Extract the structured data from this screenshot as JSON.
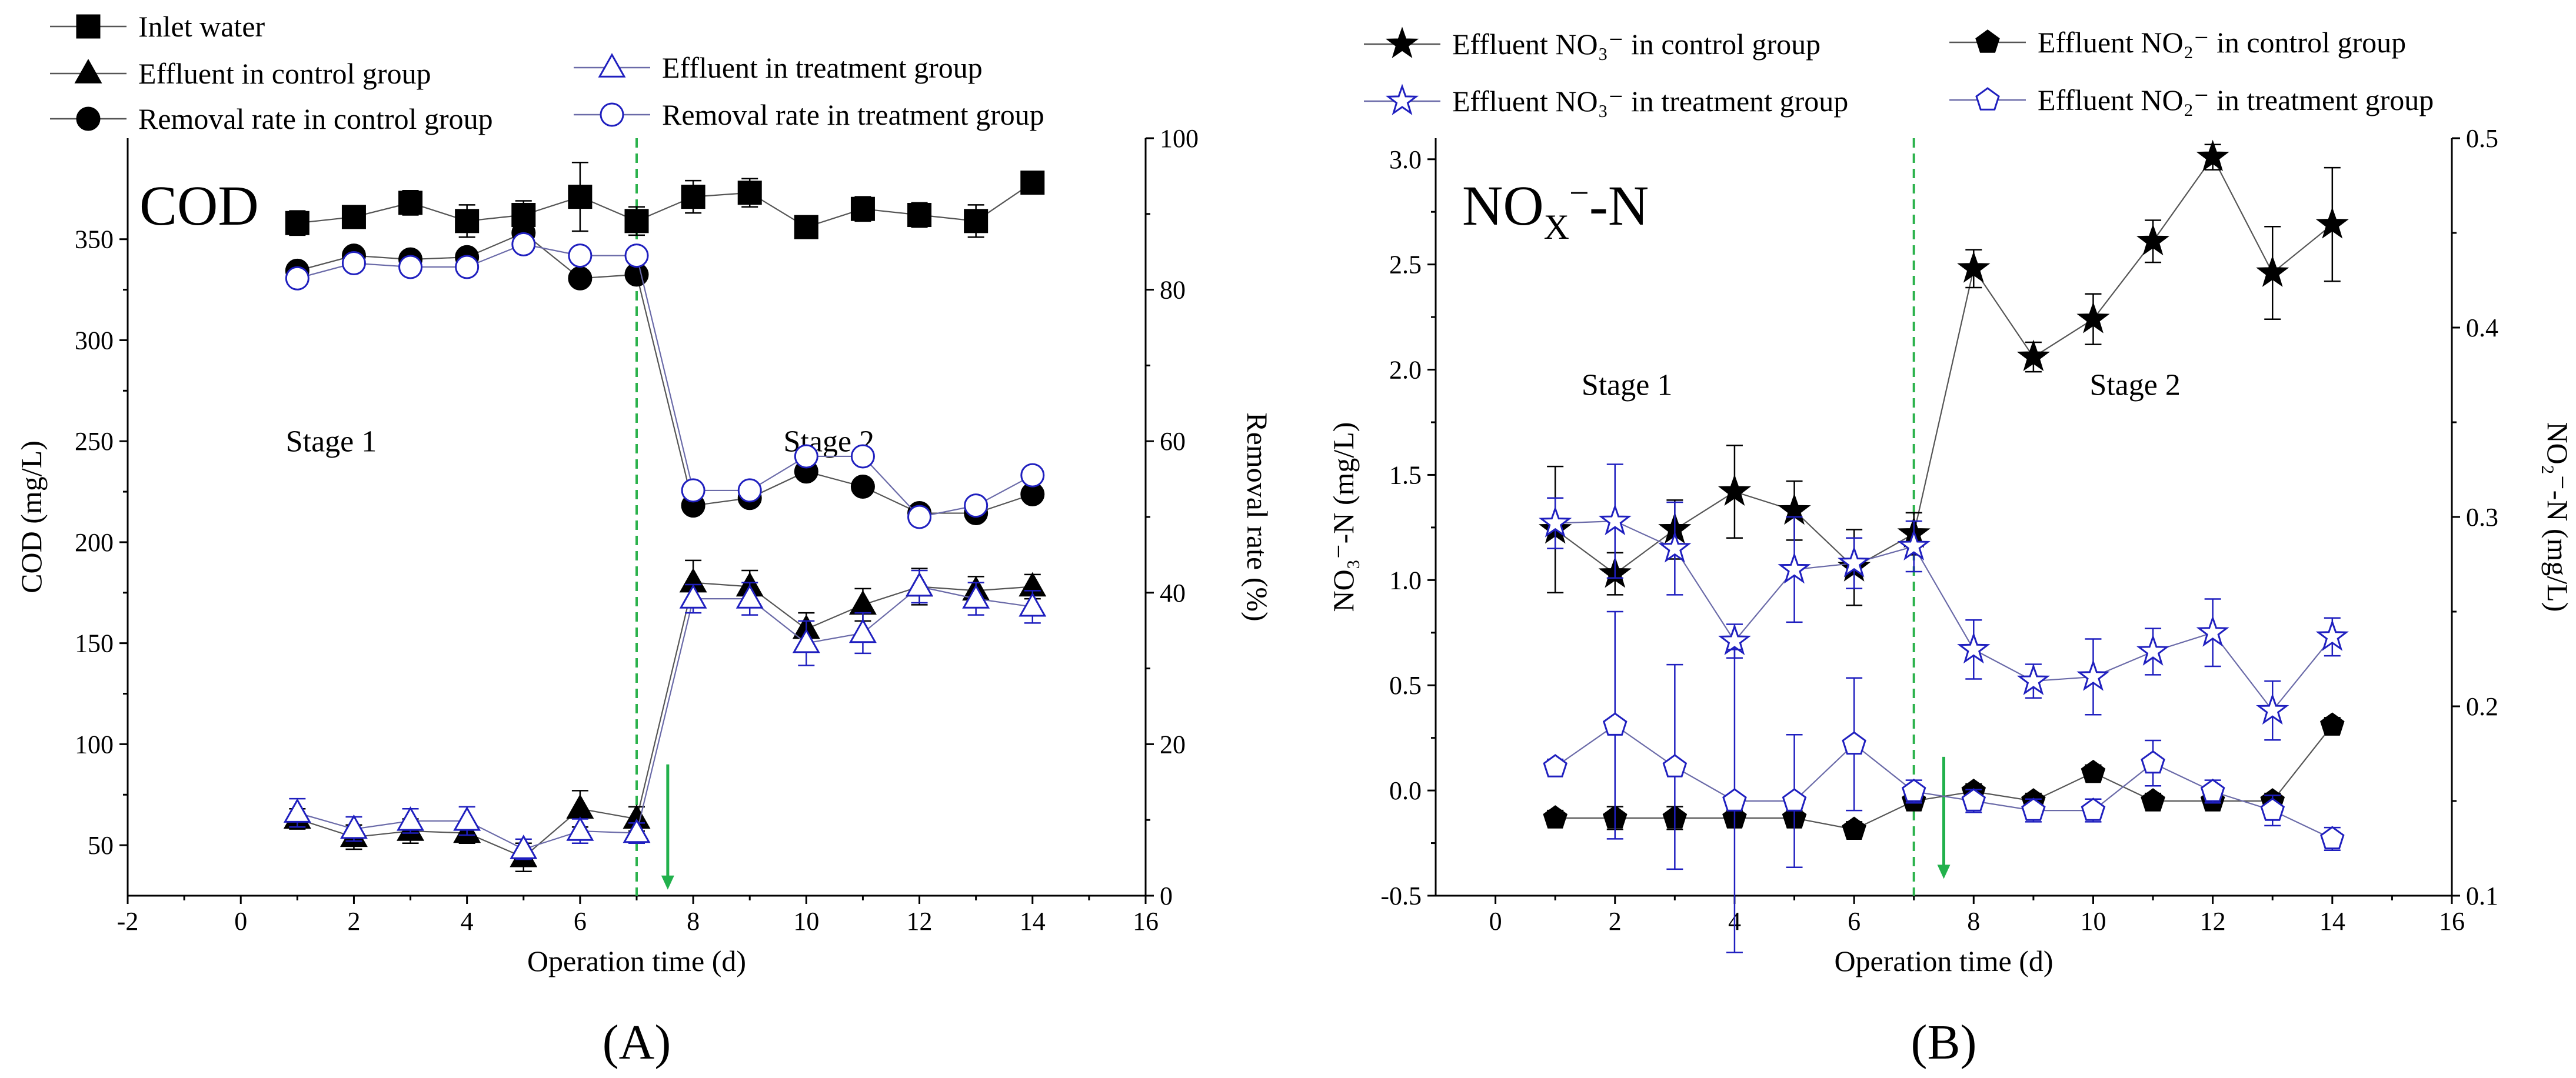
{
  "figure": {
    "panel_labels": [
      "(A)",
      "(B)"
    ]
  },
  "chart_data": [
    {
      "type": "line",
      "panel": "(A)",
      "title": "COD",
      "xlabel": "Operation time (d)",
      "ylabel": "COD (mg/L)",
      "y2label": "Removal rate (%)",
      "xlim": [
        -2,
        16
      ],
      "ylim": [
        25,
        400
      ],
      "y2lim": [
        0,
        100
      ],
      "xticks": [
        -2,
        0,
        2,
        4,
        6,
        8,
        10,
        12,
        14,
        16
      ],
      "yticks": [
        50,
        100,
        150,
        200,
        250,
        300,
        350
      ],
      "y2ticks": [
        0,
        20,
        40,
        60,
        80,
        100
      ],
      "stage_divider_x": 7,
      "stage_labels": [
        {
          "text": "Stage 1",
          "x": 1.6,
          "y": 245
        },
        {
          "text": "Stage 2",
          "x": 10.4,
          "y": 245
        }
      ],
      "arrow": {
        "x": 7.55,
        "y_from": 90,
        "y_to": 28
      },
      "x": [
        1,
        2,
        3,
        4,
        5,
        6,
        7,
        8,
        9,
        10,
        11,
        12,
        13,
        14
      ],
      "series": [
        {
          "name": "Inlet water",
          "axis": "left",
          "marker": "square",
          "filled": true,
          "color": "#000000",
          "values": [
            358,
            361,
            368,
            359,
            362,
            371,
            359,
            371,
            373,
            356,
            365,
            362,
            359,
            378
          ],
          "errors": [
            6,
            5,
            6,
            8,
            7,
            17,
            7,
            8,
            7,
            5,
            6,
            6,
            8,
            4
          ]
        },
        {
          "name": "Effluent in control group",
          "axis": "left",
          "marker": "triangle",
          "filled": true,
          "color": "#000000",
          "values": [
            63,
            54,
            57,
            56,
            44,
            68,
            63,
            180,
            178,
            157,
            169,
            178,
            176,
            178
          ],
          "errors": [
            5,
            6,
            6,
            5,
            7,
            9,
            6,
            11,
            8,
            8,
            8,
            9,
            7,
            6
          ]
        },
        {
          "name": "Effluent in treatment group",
          "axis": "left",
          "marker": "triangle",
          "filled": false,
          "color": "#1f1fbf",
          "values": [
            66,
            58,
            62,
            62,
            48,
            57,
            56,
            172,
            172,
            150,
            155,
            178,
            172,
            168
          ],
          "errors": [
            7,
            6,
            6,
            7,
            5,
            6,
            5,
            7,
            8,
            11,
            10,
            8,
            8,
            8
          ]
        },
        {
          "name": "Removal rate in control group",
          "axis": "right",
          "marker": "circle",
          "filled": true,
          "color": "#000000",
          "values": [
            82.5,
            84.5,
            84,
            84.3,
            87.5,
            81.5,
            82,
            51.5,
            52.5,
            56,
            54,
            50.5,
            50.5,
            53
          ]
        },
        {
          "name": "Removal rate in treatment group",
          "axis": "right",
          "marker": "circle",
          "filled": false,
          "color": "#1f1fbf",
          "values": [
            81.5,
            83.5,
            83,
            83,
            86,
            84.5,
            84.5,
            53.5,
            53.5,
            58,
            58,
            50,
            51.5,
            55.5
          ]
        }
      ],
      "legend": {
        "placement": "top",
        "entries": [
          "Inlet water",
          "Effluent in control group",
          "Removal rate in control group",
          "Effluent in treatment group",
          "Removal rate in treatment group"
        ]
      }
    },
    {
      "type": "line",
      "panel": "(B)",
      "title": "NO_X⁻-N",
      "title_main": "NO",
      "title_sub": "X",
      "title_sup": "−",
      "title_tail": "-N",
      "xlabel": "Operation time (d)",
      "ylabel": "NO₃⁻-N (mg/L)",
      "y2label": "NO₂⁻-N (mg/L)",
      "xlim": [
        -1,
        16
      ],
      "ylim": [
        -0.5,
        3.1
      ],
      "y2lim": [
        0.1,
        0.5
      ],
      "xticks": [
        0,
        2,
        4,
        6,
        8,
        10,
        12,
        14,
        16
      ],
      "yticks": [
        -0.5,
        0.0,
        0.5,
        1.0,
        1.5,
        2.0,
        2.5,
        3.0
      ],
      "y2ticks": [
        0.1,
        0.2,
        0.3,
        0.4,
        0.5
      ],
      "stage_divider_x": 7,
      "stage_labels": [
        {
          "text": "Stage 1",
          "x": 2.2,
          "y": 1.88
        },
        {
          "text": "Stage 2",
          "x": 10.7,
          "y": 1.88
        }
      ],
      "arrow": {
        "x": 7.5,
        "y_from": 0.16,
        "y_to": -0.42
      },
      "x": [
        1,
        2,
        3,
        4,
        5,
        6,
        7,
        8,
        9,
        10,
        11,
        12,
        13,
        14
      ],
      "series": [
        {
          "name": "Effluent NO₃⁻ in control group",
          "axis": "left",
          "marker": "star",
          "filled": true,
          "color": "#000000",
          "values": [
            1.24,
            1.03,
            1.24,
            1.42,
            1.33,
            1.06,
            1.22,
            2.48,
            2.06,
            2.24,
            2.61,
            3.01,
            2.46,
            2.69
          ],
          "errors": [
            0.3,
            0.1,
            0.14,
            0.22,
            0.14,
            0.18,
            0.1,
            0.09,
            0.07,
            0.12,
            0.1,
            0.06,
            0.22,
            0.27
          ]
        },
        {
          "name": "Effluent NO₃⁻ in treatment group",
          "axis": "left",
          "marker": "star",
          "filled": false,
          "color": "#1f1fbf",
          "values": [
            1.27,
            1.28,
            1.15,
            0.71,
            1.05,
            1.08,
            1.16,
            0.67,
            0.52,
            0.54,
            0.66,
            0.75,
            0.38,
            0.73
          ],
          "errors": [
            0.12,
            0.27,
            0.22,
            0.08,
            0.25,
            0.12,
            0.12,
            0.14,
            0.08,
            0.18,
            0.11,
            0.16,
            0.14,
            0.09
          ]
        },
        {
          "name": "Effluent NO₂⁻ in control group",
          "axis": "right",
          "marker": "pentagon",
          "filled": true,
          "color": "#000000",
          "values": [
            0.141,
            0.141,
            0.141,
            0.141,
            0.141,
            0.135,
            0.15,
            0.155,
            0.15,
            0.165,
            0.15,
            0.15,
            0.15,
            0.19
          ],
          "errors": [
            0.004,
            0.006,
            0.006,
            0.004,
            0.004,
            0.004,
            0.004,
            0.004,
            0.004,
            0.004,
            0.004,
            0.004,
            0.004,
            0.004
          ]
        },
        {
          "name": "Effluent NO₂⁻ in treatment group",
          "axis": "right",
          "marker": "pentagon",
          "filled": false,
          "color": "#1f1fbf",
          "values": [
            0.168,
            0.19,
            0.168,
            0.15,
            0.15,
            0.18,
            0.155,
            0.15,
            0.145,
            0.145,
            0.17,
            0.155,
            0.145,
            0.13
          ],
          "errors": [
            0.004,
            0.06,
            0.054,
            0.08,
            0.035,
            0.035,
            0.006,
            0.006,
            0.006,
            0.006,
            0.012,
            0.006,
            0.008,
            0.006
          ]
        }
      ],
      "legend": {
        "placement": "top",
        "entries": [
          "Effluent NO₃⁻ in control group",
          "Effluent NO₂⁻ in control group",
          "Effluent NO₃⁻ in treatment group",
          "Effluent NO₂⁻ in treatment group"
        ]
      }
    }
  ]
}
